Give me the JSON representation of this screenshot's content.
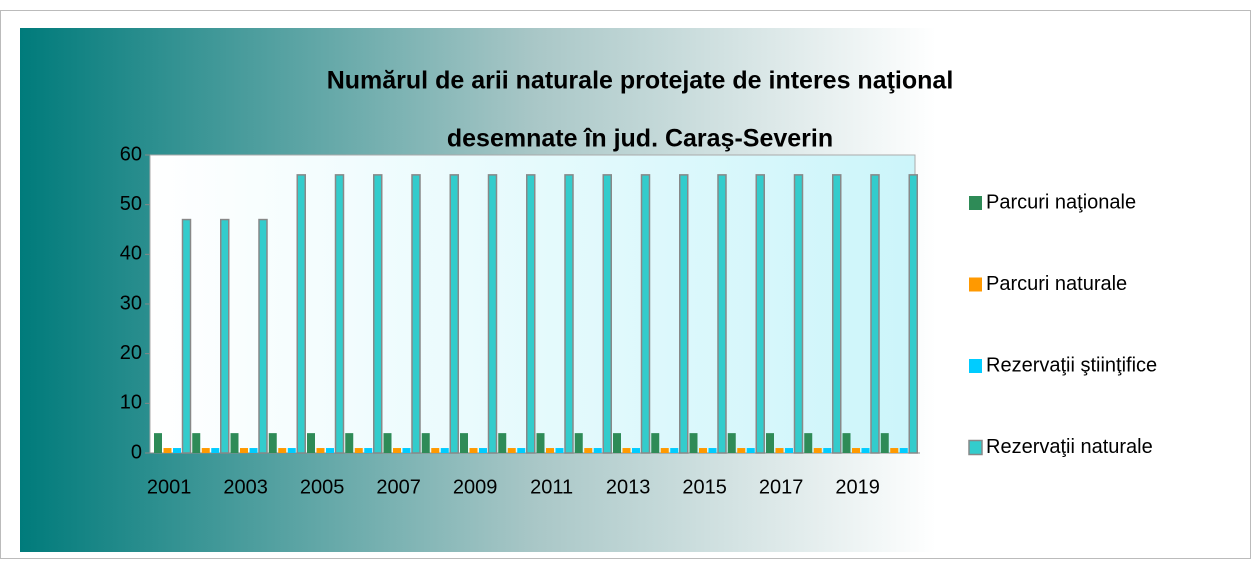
{
  "chart_data": {
    "type": "bar",
    "title": [
      "Numărul de arii naturale protejate de interes naţional",
      "desemnate în jud. Caraş-Severin"
    ],
    "categories": [
      "2001",
      null,
      "2003",
      null,
      "2005",
      null,
      "2007",
      null,
      "2009",
      null,
      "2011",
      null,
      "2013",
      null,
      "2015",
      null,
      "2017",
      null,
      "2019",
      null
    ],
    "series": [
      {
        "name": "Parcuri naţionale",
        "color": "#2e8b57",
        "values": [
          4,
          4,
          4,
          4,
          4,
          4,
          4,
          4,
          4,
          4,
          4,
          4,
          4,
          4,
          4,
          4,
          4,
          4,
          4,
          4
        ]
      },
      {
        "name": "Parcuri naturale",
        "color": "#ff9900",
        "values": [
          1,
          1,
          1,
          1,
          1,
          1,
          1,
          1,
          1,
          1,
          1,
          1,
          1,
          1,
          1,
          1,
          1,
          1,
          1,
          1
        ]
      },
      {
        "name": "Rezervaţii ştiinţifice",
        "color": "#00ccff",
        "values": [
          1,
          1,
          1,
          1,
          1,
          1,
          1,
          1,
          1,
          1,
          1,
          1,
          1,
          1,
          1,
          1,
          1,
          1,
          1,
          1
        ]
      },
      {
        "name": "Rezervaţii naturale",
        "color": "#33cccc",
        "values": [
          47,
          47,
          47,
          56,
          56,
          56,
          56,
          56,
          56,
          56,
          56,
          56,
          56,
          56,
          56,
          56,
          56,
          56,
          56,
          56
        ]
      }
    ],
    "ylim": [
      0,
      60
    ],
    "yticks": [
      0,
      10,
      20,
      30,
      40,
      50,
      60
    ],
    "legend": "right"
  }
}
